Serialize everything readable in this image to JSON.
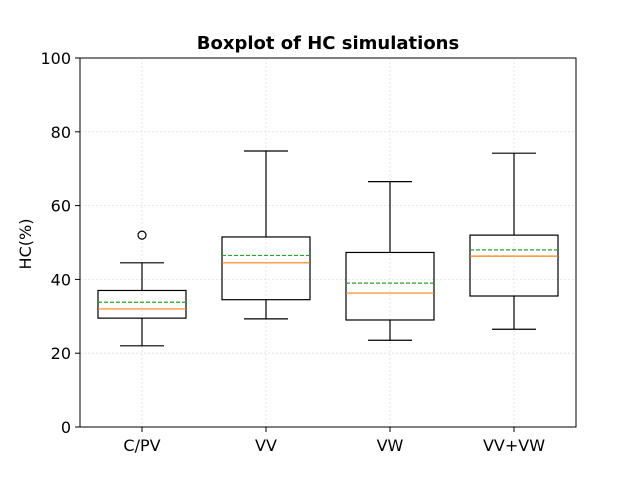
{
  "chart_data": {
    "type": "boxplot",
    "title": "Boxplot of HC simulations",
    "xlabel": "",
    "ylabel": "HC(%)",
    "ylim": [
      0,
      100
    ],
    "yticks": [
      0,
      20,
      40,
      60,
      80,
      100
    ],
    "grid": true,
    "categories": [
      "C/PV",
      "VV",
      "VW",
      "VV+VW"
    ],
    "boxes": [
      {
        "whisker_low": 22.0,
        "q1": 29.5,
        "median": 32.0,
        "mean": 33.8,
        "q3": 37.0,
        "whisker_high": 44.5,
        "outliers": [
          52.0
        ]
      },
      {
        "whisker_low": 29.3,
        "q1": 34.5,
        "median": 44.5,
        "mean": 46.5,
        "q3": 51.5,
        "whisker_high": 74.8,
        "outliers": []
      },
      {
        "whisker_low": 23.5,
        "q1": 29.0,
        "median": 36.3,
        "mean": 39.0,
        "q3": 47.3,
        "whisker_high": 66.5,
        "outliers": []
      },
      {
        "whisker_low": 26.5,
        "q1": 35.5,
        "median": 46.3,
        "mean": 48.0,
        "q3": 52.0,
        "whisker_high": 74.2,
        "outliers": []
      }
    ],
    "colors": {
      "box": "#000000",
      "median": "#ff7f0e",
      "mean": "#2ca02c",
      "grid": "#dddddd"
    }
  }
}
